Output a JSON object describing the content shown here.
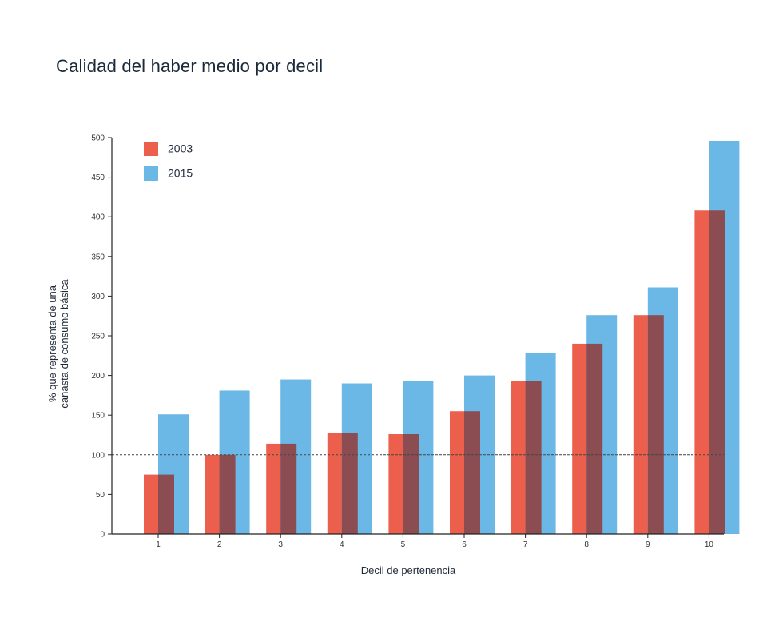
{
  "chart_data": {
    "type": "bar",
    "title": "Calidad del haber medio por decil",
    "xlabel": "Decil de pertenencia",
    "ylabel_lines": [
      "% que representa de una",
      "canasta de consumo básica"
    ],
    "categories": [
      "1",
      "2",
      "3",
      "4",
      "5",
      "6",
      "7",
      "8",
      "9",
      "10"
    ],
    "series": [
      {
        "name": "2003",
        "color": "#ec5f4c",
        "values": [
          75,
          100,
          114,
          128,
          126,
          155,
          193,
          240,
          276,
          408
        ]
      },
      {
        "name": "2015",
        "color": "#6bb8e6",
        "values": [
          151,
          181,
          195,
          190,
          193,
          200,
          228,
          276,
          311,
          496
        ]
      }
    ],
    "overlap_color": "#8b4c52",
    "yticks": [
      0,
      50,
      100,
      150,
      200,
      250,
      300,
      350,
      400,
      450,
      500
    ],
    "ylim": [
      0,
      500
    ],
    "reference_line": 100,
    "legend_position": "top-left",
    "grid": false
  }
}
